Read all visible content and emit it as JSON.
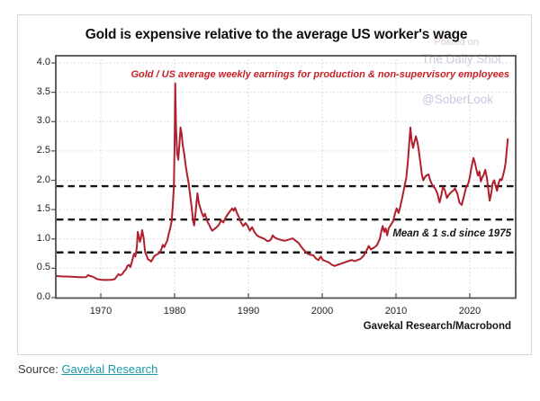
{
  "chart": {
    "title": "Gold is expensive relative to the average US worker's wage",
    "subtitle": "Gold / US average weekly earnings for production & non-supervisory employees",
    "watermark": {
      "line1": "Posted on",
      "line2": "The Daily Shot",
      "line3": "@SoberLook"
    },
    "annotation": "Mean & 1 s.d since 1975",
    "credit": "Gavekal Research/Macrobond",
    "colors": {
      "line": "#b01f2e",
      "subtitle_red": "#c42127",
      "dashed_reference": "#151515",
      "watermark": "#c8cee0",
      "link_teal": "#1b98a8"
    }
  },
  "source": {
    "label": "Source:",
    "link_text": "Gavekal Research"
  },
  "chart_data": {
    "type": "line",
    "title": "Gold is expensive relative to the average US worker's wage",
    "series_label": "Gold / US average weekly earnings for production & non-supervisory employees",
    "xlabel": "",
    "ylabel": "",
    "xlim": [
      1963.9,
      2026.3
    ],
    "ylim": [
      0.0,
      4.0
    ],
    "x_ticks": [
      1970,
      1980,
      1990,
      2000,
      2010,
      2020
    ],
    "y_ticks": [
      0.0,
      0.5,
      1.0,
      1.5,
      2.0,
      2.5,
      3.0,
      3.5,
      4.0
    ],
    "grid": true,
    "reference_lines": {
      "mean": 1.33,
      "plus_1sd": 1.9,
      "minus_1sd": 0.77,
      "label": "Mean & 1 s.d since 1975"
    },
    "points": [
      [
        1964.0,
        0.37
      ],
      [
        1964.4,
        0.365
      ],
      [
        1964.8,
        0.362
      ],
      [
        1965.2,
        0.36
      ],
      [
        1965.6,
        0.358
      ],
      [
        1966.0,
        0.355
      ],
      [
        1966.5,
        0.352
      ],
      [
        1967.0,
        0.35
      ],
      [
        1967.5,
        0.347
      ],
      [
        1968.0,
        0.35
      ],
      [
        1968.3,
        0.385
      ],
      [
        1968.5,
        0.37
      ],
      [
        1968.8,
        0.36
      ],
      [
        1969.1,
        0.345
      ],
      [
        1969.5,
        0.315
      ],
      [
        1970.0,
        0.305
      ],
      [
        1970.5,
        0.3
      ],
      [
        1971.0,
        0.3
      ],
      [
        1971.5,
        0.305
      ],
      [
        1971.9,
        0.315
      ],
      [
        1972.2,
        0.37
      ],
      [
        1972.4,
        0.4
      ],
      [
        1972.6,
        0.38
      ],
      [
        1972.9,
        0.4
      ],
      [
        1973.1,
        0.44
      ],
      [
        1973.4,
        0.48
      ],
      [
        1973.6,
        0.54
      ],
      [
        1973.8,
        0.56
      ],
      [
        1974.0,
        0.52
      ],
      [
        1974.2,
        0.6
      ],
      [
        1974.5,
        0.75
      ],
      [
        1974.7,
        0.7
      ],
      [
        1974.9,
        0.88
      ],
      [
        1975.0,
        1.12
      ],
      [
        1975.15,
        1.05
      ],
      [
        1975.3,
        0.95
      ],
      [
        1975.45,
        1.02
      ],
      [
        1975.6,
        1.15
      ],
      [
        1975.8,
        1.02
      ],
      [
        1976.0,
        0.78
      ],
      [
        1976.2,
        0.72
      ],
      [
        1976.4,
        0.65
      ],
      [
        1976.6,
        0.64
      ],
      [
        1976.8,
        0.615
      ],
      [
        1977.0,
        0.65
      ],
      [
        1977.2,
        0.7
      ],
      [
        1977.5,
        0.73
      ],
      [
        1977.8,
        0.75
      ],
      [
        1978.0,
        0.77
      ],
      [
        1978.2,
        0.82
      ],
      [
        1978.4,
        0.9
      ],
      [
        1978.6,
        0.86
      ],
      [
        1978.8,
        0.92
      ],
      [
        1979.0,
        0.97
      ],
      [
        1979.2,
        1.08
      ],
      [
        1979.4,
        1.18
      ],
      [
        1979.6,
        1.3
      ],
      [
        1979.75,
        1.55
      ],
      [
        1979.9,
        1.9
      ],
      [
        1980.0,
        2.6
      ],
      [
        1980.08,
        3.65
      ],
      [
        1980.2,
        2.9
      ],
      [
        1980.35,
        2.45
      ],
      [
        1980.5,
        2.35
      ],
      [
        1980.65,
        2.6
      ],
      [
        1980.8,
        2.9
      ],
      [
        1980.95,
        2.8
      ],
      [
        1981.1,
        2.6
      ],
      [
        1981.3,
        2.45
      ],
      [
        1981.5,
        2.25
      ],
      [
        1981.7,
        2.1
      ],
      [
        1981.9,
        1.95
      ],
      [
        1982.1,
        1.75
      ],
      [
        1982.3,
        1.55
      ],
      [
        1982.5,
        1.32
      ],
      [
        1982.65,
        1.23
      ],
      [
        1982.8,
        1.4
      ],
      [
        1982.95,
        1.6
      ],
      [
        1983.1,
        1.78
      ],
      [
        1983.3,
        1.6
      ],
      [
        1983.5,
        1.52
      ],
      [
        1983.7,
        1.44
      ],
      [
        1983.9,
        1.38
      ],
      [
        1984.1,
        1.43
      ],
      [
        1984.3,
        1.35
      ],
      [
        1984.5,
        1.28
      ],
      [
        1984.7,
        1.24
      ],
      [
        1984.9,
        1.18
      ],
      [
        1985.1,
        1.14
      ],
      [
        1985.4,
        1.17
      ],
      [
        1985.7,
        1.2
      ],
      [
        1986.0,
        1.24
      ],
      [
        1986.3,
        1.32
      ],
      [
        1986.6,
        1.28
      ],
      [
        1986.9,
        1.36
      ],
      [
        1987.2,
        1.42
      ],
      [
        1987.5,
        1.47
      ],
      [
        1987.8,
        1.52
      ],
      [
        1988.0,
        1.48
      ],
      [
        1988.2,
        1.53
      ],
      [
        1988.45,
        1.44
      ],
      [
        1988.7,
        1.38
      ],
      [
        1989.0,
        1.28
      ],
      [
        1989.3,
        1.22
      ],
      [
        1989.6,
        1.27
      ],
      [
        1989.9,
        1.22
      ],
      [
        1990.2,
        1.14
      ],
      [
        1990.5,
        1.2
      ],
      [
        1990.8,
        1.12
      ],
      [
        1991.1,
        1.07
      ],
      [
        1991.4,
        1.04
      ],
      [
        1991.8,
        1.02
      ],
      [
        1992.2,
        1.0
      ],
      [
        1992.6,
        0.96
      ],
      [
        1993.0,
        0.98
      ],
      [
        1993.3,
        1.06
      ],
      [
        1993.6,
        1.02
      ],
      [
        1994.0,
        1.0
      ],
      [
        1994.5,
        0.98
      ],
      [
        1995.0,
        0.97
      ],
      [
        1995.5,
        0.99
      ],
      [
        1996.0,
        1.01
      ],
      [
        1996.4,
        0.97
      ],
      [
        1996.8,
        0.93
      ],
      [
        1997.2,
        0.86
      ],
      [
        1997.6,
        0.8
      ],
      [
        1998.0,
        0.75
      ],
      [
        1998.4,
        0.73
      ],
      [
        1998.8,
        0.72
      ],
      [
        1999.2,
        0.66
      ],
      [
        1999.5,
        0.64
      ],
      [
        1999.8,
        0.7
      ],
      [
        2000.1,
        0.64
      ],
      [
        2000.5,
        0.62
      ],
      [
        2000.9,
        0.6
      ],
      [
        2001.3,
        0.56
      ],
      [
        2001.7,
        0.54
      ],
      [
        2002.1,
        0.56
      ],
      [
        2002.6,
        0.58
      ],
      [
        2003.0,
        0.6
      ],
      [
        2003.5,
        0.62
      ],
      [
        2004.0,
        0.64
      ],
      [
        2004.4,
        0.62
      ],
      [
        2004.8,
        0.64
      ],
      [
        2005.2,
        0.66
      ],
      [
        2005.6,
        0.71
      ],
      [
        2006.0,
        0.8
      ],
      [
        2006.3,
        0.88
      ],
      [
        2006.6,
        0.82
      ],
      [
        2007.0,
        0.85
      ],
      [
        2007.4,
        0.89
      ],
      [
        2007.8,
        1.0
      ],
      [
        2008.0,
        1.12
      ],
      [
        2008.2,
        1.22
      ],
      [
        2008.4,
        1.12
      ],
      [
        2008.6,
        1.18
      ],
      [
        2008.8,
        1.06
      ],
      [
        2009.0,
        1.18
      ],
      [
        2009.3,
        1.24
      ],
      [
        2009.6,
        1.3
      ],
      [
        2009.9,
        1.45
      ],
      [
        2010.1,
        1.52
      ],
      [
        2010.35,
        1.44
      ],
      [
        2010.6,
        1.56
      ],
      [
        2010.8,
        1.68
      ],
      [
        2011.0,
        1.8
      ],
      [
        2011.2,
        1.92
      ],
      [
        2011.4,
        2.05
      ],
      [
        2011.6,
        2.3
      ],
      [
        2011.8,
        2.65
      ],
      [
        2011.95,
        2.9
      ],
      [
        2012.1,
        2.7
      ],
      [
        2012.3,
        2.55
      ],
      [
        2012.5,
        2.65
      ],
      [
        2012.7,
        2.75
      ],
      [
        2012.9,
        2.65
      ],
      [
        2013.1,
        2.5
      ],
      [
        2013.3,
        2.3
      ],
      [
        2013.5,
        2.1
      ],
      [
        2013.7,
        2.0
      ],
      [
        2013.9,
        2.05
      ],
      [
        2014.1,
        2.08
      ],
      [
        2014.4,
        2.1
      ],
      [
        2014.7,
        1.98
      ],
      [
        2015.0,
        1.9
      ],
      [
        2015.3,
        1.86
      ],
      [
        2015.6,
        1.78
      ],
      [
        2015.9,
        1.62
      ],
      [
        2016.1,
        1.72
      ],
      [
        2016.35,
        1.88
      ],
      [
        2016.6,
        1.84
      ],
      [
        2016.9,
        1.7
      ],
      [
        2017.2,
        1.76
      ],
      [
        2017.5,
        1.8
      ],
      [
        2017.8,
        1.83
      ],
      [
        2018.0,
        1.86
      ],
      [
        2018.3,
        1.78
      ],
      [
        2018.6,
        1.62
      ],
      [
        2018.9,
        1.58
      ],
      [
        2019.2,
        1.72
      ],
      [
        2019.5,
        1.88
      ],
      [
        2019.8,
        1.95
      ],
      [
        2020.0,
        2.05
      ],
      [
        2020.2,
        2.2
      ],
      [
        2020.5,
        2.38
      ],
      [
        2020.7,
        2.3
      ],
      [
        2020.9,
        2.18
      ],
      [
        2021.1,
        2.08
      ],
      [
        2021.3,
        2.15
      ],
      [
        2021.5,
        1.98
      ],
      [
        2021.7,
        2.05
      ],
      [
        2021.9,
        2.1
      ],
      [
        2022.1,
        2.18
      ],
      [
        2022.3,
        2.05
      ],
      [
        2022.5,
        1.85
      ],
      [
        2022.7,
        1.65
      ],
      [
        2022.9,
        1.78
      ],
      [
        2023.1,
        1.95
      ],
      [
        2023.3,
        2.0
      ],
      [
        2023.5,
        1.9
      ],
      [
        2023.7,
        1.82
      ],
      [
        2023.9,
        1.95
      ],
      [
        2024.1,
        2.02
      ],
      [
        2024.3,
        2.0
      ],
      [
        2024.5,
        2.08
      ],
      [
        2024.7,
        2.18
      ],
      [
        2024.85,
        2.3
      ],
      [
        2025.0,
        2.5
      ],
      [
        2025.15,
        2.7
      ]
    ]
  }
}
